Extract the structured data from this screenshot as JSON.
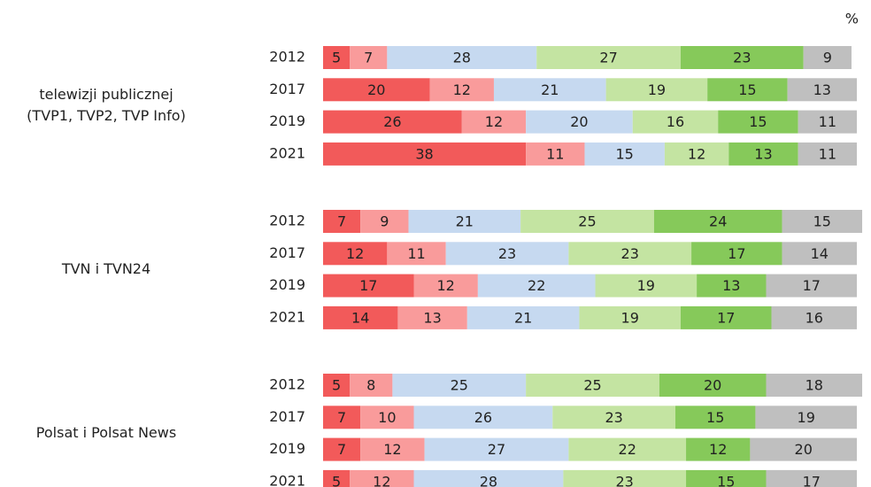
{
  "chart_data": {
    "type": "stacked_bar",
    "unit": "%",
    "colors": [
      "#f25a5a",
      "#f99b9b",
      "#c6d9f0",
      "#c4e4a2",
      "#86c95a",
      "#bfbfbf"
    ],
    "xlim": [
      0,
      100
    ],
    "groups": [
      {
        "label": [
          "telewizji publicznej",
          "(TVP1, TVP2, TVP Info)"
        ],
        "rows": [
          {
            "year": "2012",
            "values": [
              5,
              7,
              28,
              27,
              23,
              9
            ]
          },
          {
            "year": "2017",
            "values": [
              20,
              12,
              21,
              19,
              15,
              13
            ]
          },
          {
            "year": "2019",
            "values": [
              26,
              12,
              20,
              16,
              15,
              11
            ]
          },
          {
            "year": "2021",
            "values": [
              38,
              11,
              15,
              12,
              13,
              11
            ]
          }
        ]
      },
      {
        "label": [
          "TVN i TVN24"
        ],
        "rows": [
          {
            "year": "2012",
            "values": [
              7,
              9,
              21,
              25,
              24,
              15
            ]
          },
          {
            "year": "2017",
            "values": [
              12,
              11,
              23,
              23,
              17,
              14
            ]
          },
          {
            "year": "2019",
            "values": [
              17,
              12,
              22,
              19,
              13,
              17
            ]
          },
          {
            "year": "2021",
            "values": [
              14,
              13,
              21,
              19,
              17,
              16
            ]
          }
        ]
      },
      {
        "label": [
          "Polsat i Polsat News"
        ],
        "rows": [
          {
            "year": "2012",
            "values": [
              5,
              8,
              25,
              25,
              20,
              18
            ]
          },
          {
            "year": "2017",
            "values": [
              7,
              10,
              26,
              23,
              15,
              19
            ]
          },
          {
            "year": "2019",
            "values": [
              7,
              12,
              27,
              22,
              12,
              20
            ]
          },
          {
            "year": "2021",
            "values": [
              5,
              12,
              28,
              23,
              15,
              17
            ]
          }
        ]
      }
    ]
  }
}
